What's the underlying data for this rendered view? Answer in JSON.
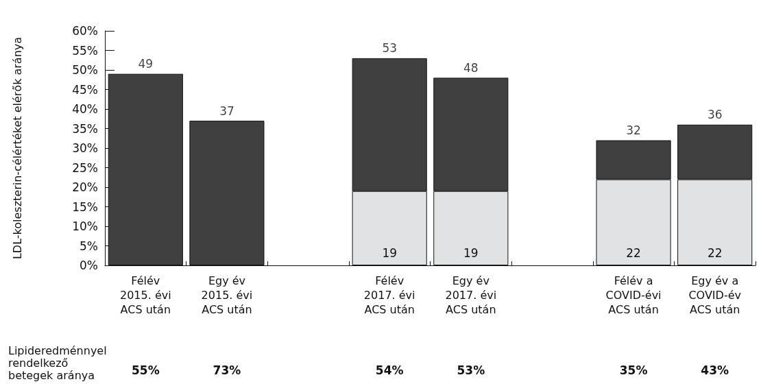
{
  "chart_data": {
    "type": "bar",
    "stacked": true,
    "ylabel": "LDL-koleszterin-célértéket elérők aránya",
    "categories": [
      "Félév\n2015. évi\nACS után",
      "Egy év\n2015. évi\nACS után",
      null,
      "Félév\n2017. évi\nACS után",
      "Egy év\n2017. évi\nACS után",
      null,
      "Félév a\nCOVID-évi\nACS után",
      "Egy év a\nCOVID-év\nACS után"
    ],
    "series": [
      {
        "color": "#e1e2e4",
        "values": [
          null,
          null,
          null,
          19,
          19,
          null,
          22,
          22
        ],
        "value_labels": [
          null,
          null,
          null,
          "19",
          "19",
          null,
          "22",
          "22"
        ]
      },
      {
        "color": "#404040",
        "values": [
          49,
          37,
          null,
          34,
          29,
          null,
          10,
          14
        ]
      }
    ],
    "totals": [
      "49",
      "37",
      null,
      "53",
      "48",
      null,
      "32",
      "36"
    ],
    "ylim": [
      0,
      60
    ],
    "yticks": [
      {
        "value": 0,
        "label": "0%"
      },
      {
        "value": 5,
        "label": "5%"
      },
      {
        "value": 10,
        "label": "10%"
      },
      {
        "value": 15,
        "label": "15%"
      },
      {
        "value": 20,
        "label": "20%"
      },
      {
        "value": 25,
        "label": "25%"
      },
      {
        "value": 30,
        "label": "30%"
      },
      {
        "value": 35,
        "label": "35%"
      },
      {
        "value": 40,
        "label": "40%"
      },
      {
        "value": 45,
        "label": "45%"
      },
      {
        "value": 50,
        "label": "50%"
      },
      {
        "value": 55,
        "label": "55%"
      },
      {
        "value": 60,
        "label": "60%"
      }
    ],
    "grid": false,
    "annotations": [
      "Lipideredménnyel\nrendelkező\nbetegek aránya",
      "55%",
      "73%",
      "54%",
      "53%",
      "35%",
      "43%"
    ]
  }
}
